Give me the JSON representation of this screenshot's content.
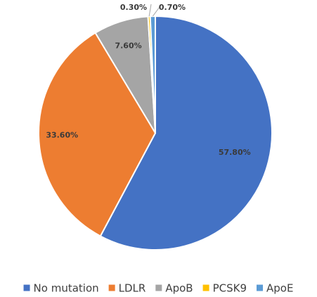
{
  "chart_data": {
    "type": "pie",
    "title": "",
    "legend_position": "bottom",
    "slices": [
      {
        "name": "No mutation",
        "value": 57.8,
        "label": "57.80%",
        "color": "#4472C4"
      },
      {
        "name": "LDLR",
        "value": 33.6,
        "label": "33.60%",
        "color": "#ED7D31"
      },
      {
        "name": "ApoB",
        "value": 7.6,
        "label": "7.60%",
        "color": "#A5A5A5"
      },
      {
        "name": "PCSK9",
        "value": 0.3,
        "label": "0.30%",
        "color": "#FFC000"
      },
      {
        "name": "ApoE",
        "value": 0.7,
        "label": "0.70%",
        "color": "#5B9BD5"
      }
    ]
  }
}
